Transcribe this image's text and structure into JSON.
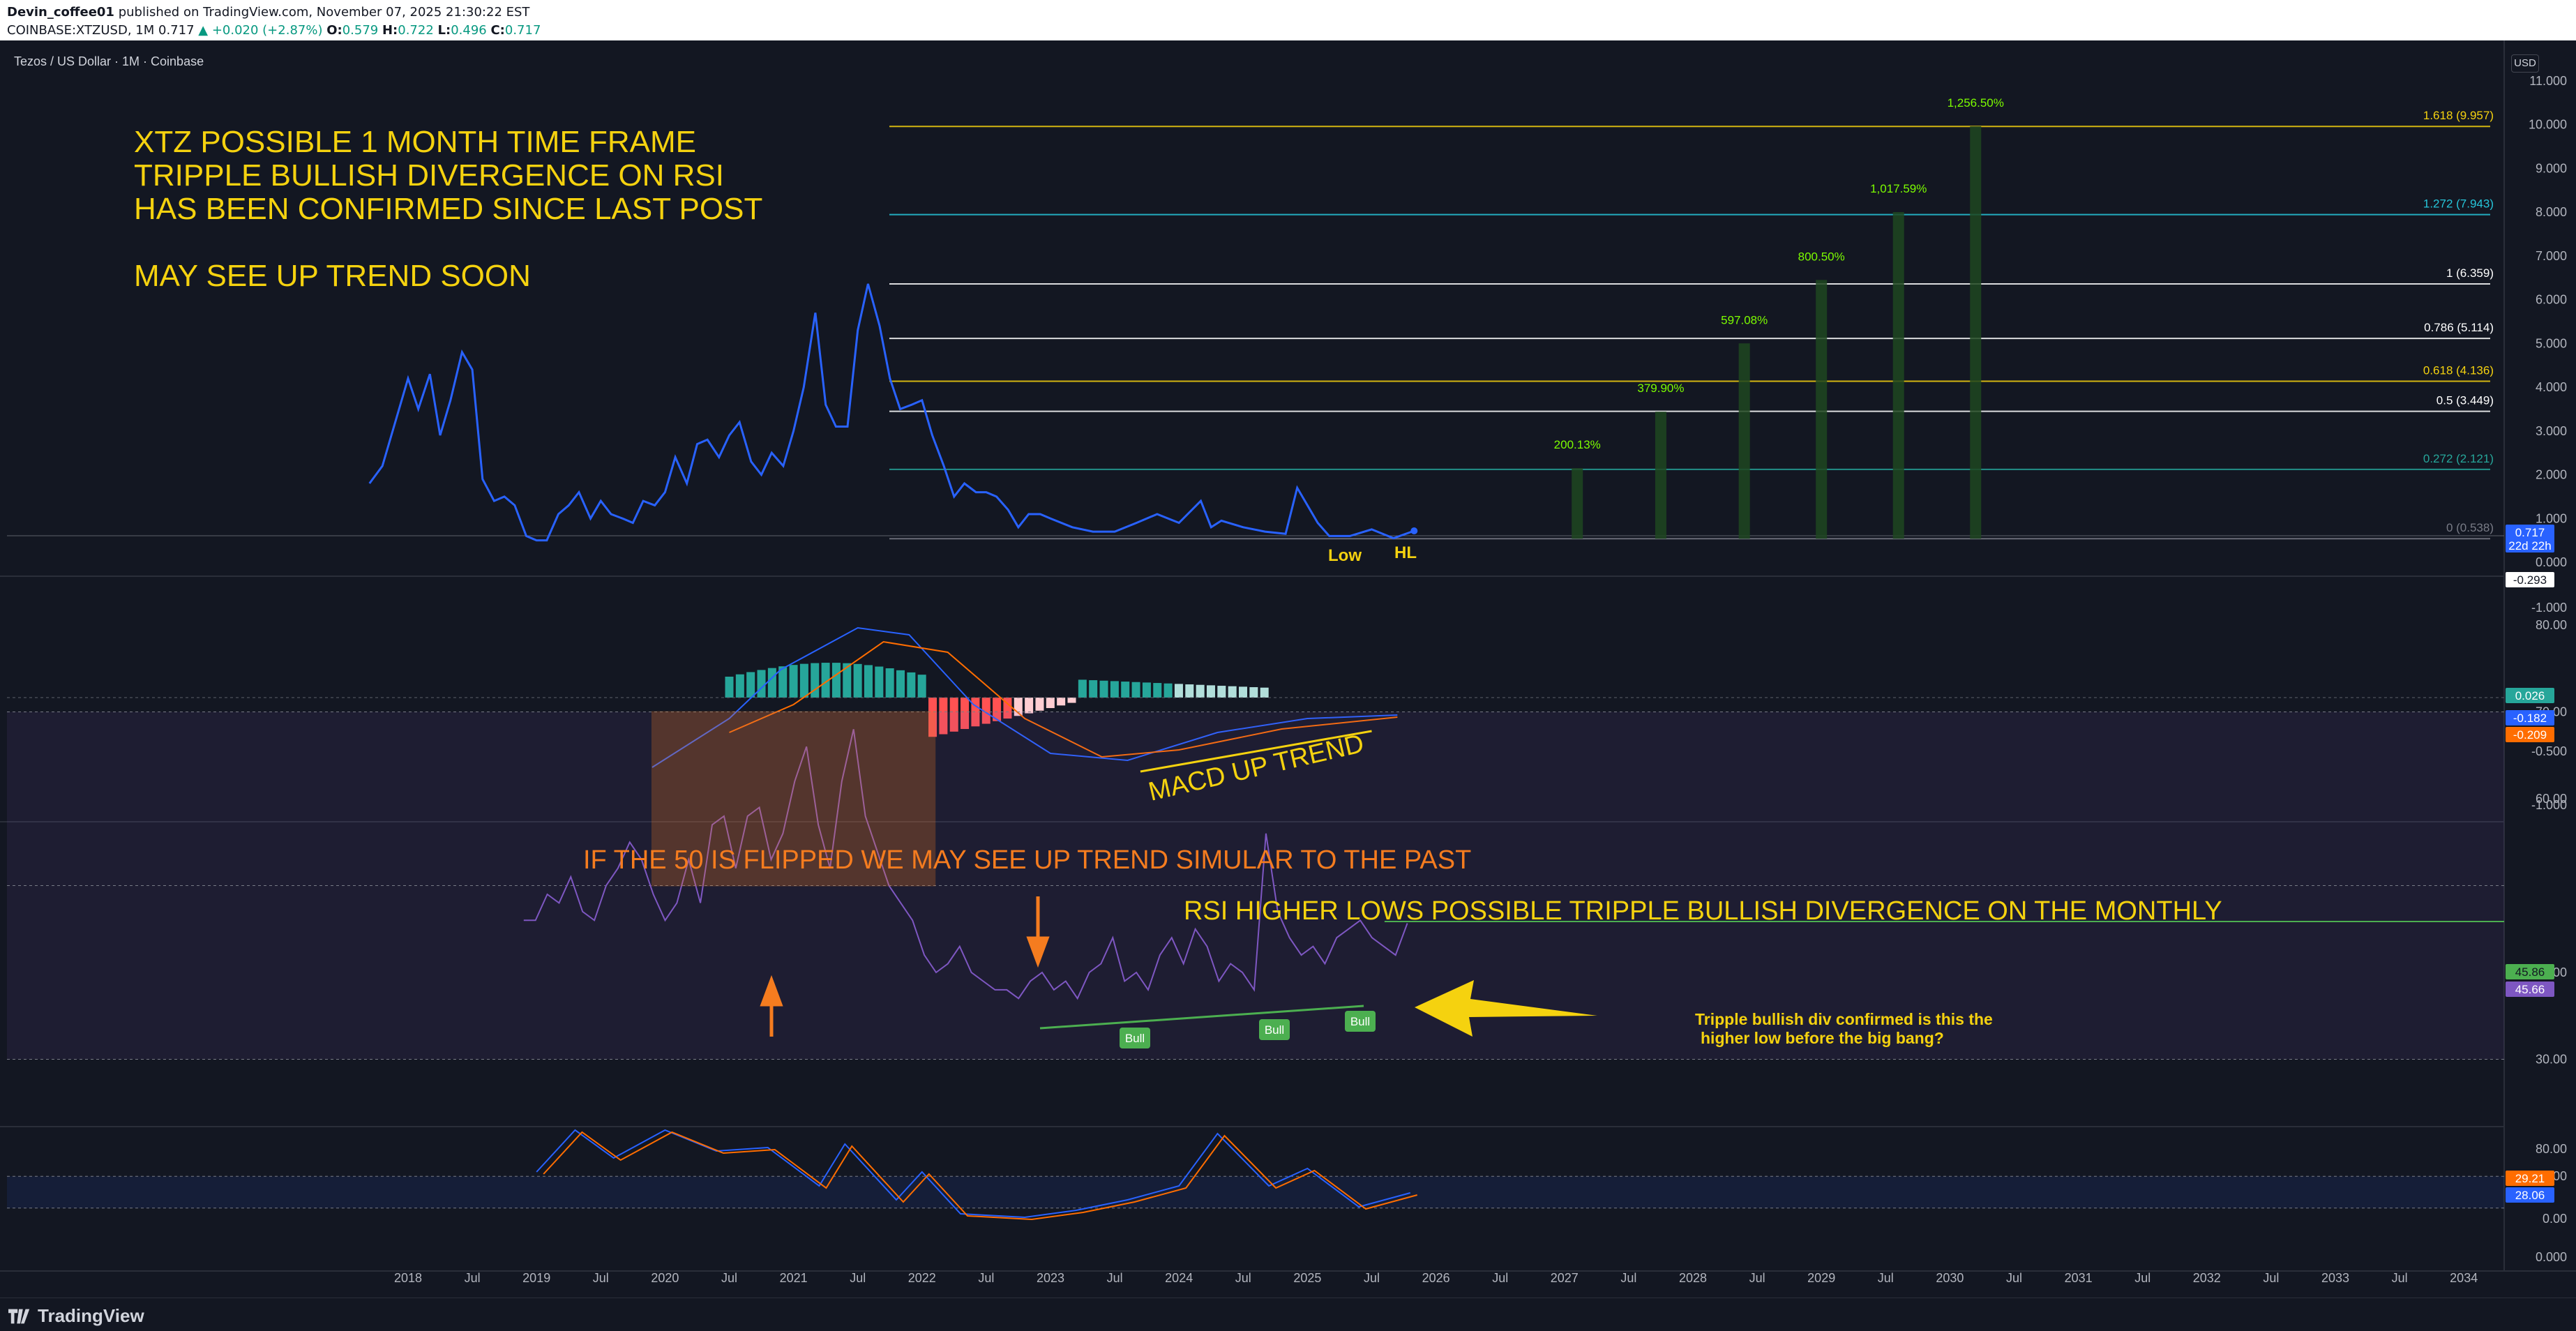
{
  "header": {
    "publisher": "Devin_coffee01",
    "published_text": "published on TradingView.com, November 07, 2025 21:30:22 EST",
    "symbol_line": {
      "symbol": "COINBASE:XTZUSD, 1M",
      "last": "0.717",
      "change": "▲ +0.020 (+2.87%)",
      "o_label": "O:",
      "o": "0.579",
      "h_label": "H:",
      "h": "0.722",
      "l_label": "L:",
      "l": "0.496",
      "c_label": "C:",
      "c": "0.717"
    }
  },
  "chart_title": "Tezos / US Dollar · 1M · Coinbase",
  "currency_button": "USD",
  "footer": {
    "brand": "TradingView"
  },
  "colors": {
    "background": "#131722",
    "price_line": "#2962ff",
    "annotation_yellow": "#f5d20f",
    "annotation_orange": "#f57c1f",
    "rsi_line": "#7e57c2",
    "green": "#4caf50"
  },
  "annotations": {
    "main_text": [
      "XTZ POSSIBLE 1 MONTH TIME FRAME",
      "TRIPPLE BULLISH DIVERGENCE ON RSI",
      "HAS BEEN CONFIRMED SINCE LAST POST",
      "",
      "MAY SEE UP TREND SOON"
    ],
    "low": "Low",
    "hl": "HL",
    "macd": "MACD UP TREND",
    "flip50": "IF THE 50 IS FLIPPED WE MAY SEE UP TREND SIMULAR TO THE PAST",
    "rsi_text": "RSI HIGHER LOWS POSSIBLE TRIPPLE BULLISH DIVERGENCE ON THE MONTHLY",
    "confirm_text": [
      "Tripple bullish div confirmed is this the",
      "higher low before the big bang?"
    ],
    "bull": "Bull"
  },
  "fib_levels": [
    {
      "label": "1.618 (9.957)",
      "value": 9.957,
      "color": "#f5d20f"
    },
    {
      "label": "1.272 (7.943)",
      "value": 7.943,
      "color": "#26c6da"
    },
    {
      "label": "1 (6.359)",
      "value": 6.359,
      "color": "#ffffff"
    },
    {
      "label": "0.786 (5.114)",
      "value": 5.114,
      "color": "#ffffff"
    },
    {
      "label": "0.618 (4.136)",
      "value": 4.136,
      "color": "#f5d20f"
    },
    {
      "label": "0.5 (3.449)",
      "value": 3.449,
      "color": "#ffffff"
    },
    {
      "label": "0.272 (2.121)",
      "value": 2.121,
      "color": "#26a69a"
    },
    {
      "label": "0 (0.538)",
      "value": 0.538,
      "color": "#787b86"
    }
  ],
  "targets": [
    {
      "label": "200.13%",
      "value": 2.15,
      "year": 2027.1
    },
    {
      "label": "379.90%",
      "value": 3.44,
      "year": 2027.75
    },
    {
      "label": "597.08%",
      "value": 5.0,
      "year": 2028.4
    },
    {
      "label": "800.50%",
      "value": 6.45,
      "year": 2029.0
    },
    {
      "label": "1,017.59%",
      "value": 8.0,
      "year": 2029.6
    },
    {
      "label": "1,256.50%",
      "value": 9.96,
      "year": 2030.2
    }
  ],
  "chart_data": {
    "type": "line",
    "price_series": {
      "x": [
        2017.7,
        2017.8,
        2018.0,
        2018.08,
        2018.17,
        2018.25,
        2018.33,
        2018.42,
        2018.5,
        2018.58,
        2018.67,
        2018.75,
        2018.83,
        2018.92,
        2019.0,
        2019.08,
        2019.17,
        2019.25,
        2019.33,
        2019.42,
        2019.5,
        2019.58,
        2019.67,
        2019.75,
        2019.83,
        2019.92,
        2020.0,
        2020.08,
        2020.17,
        2020.25,
        2020.33,
        2020.42,
        2020.5,
        2020.58,
        2020.67,
        2020.75,
        2020.83,
        2020.92,
        2021.0,
        2021.08,
        2021.17,
        2021.25,
        2021.33,
        2021.42,
        2021.5,
        2021.58,
        2021.67,
        2021.75,
        2021.83,
        2021.92,
        2022.0,
        2022.08,
        2022.17,
        2022.25,
        2022.33,
        2022.42,
        2022.5,
        2022.58,
        2022.67,
        2022.75,
        2022.83,
        2022.92,
        2023.0,
        2023.17,
        2023.33,
        2023.5,
        2023.67,
        2023.83,
        2024.0,
        2024.17,
        2024.25,
        2024.33,
        2024.5,
        2024.67,
        2024.83,
        2024.92,
        2025.0,
        2025.08,
        2025.17,
        2025.33,
        2025.5,
        2025.67,
        2025.83
      ],
      "values": [
        1.8,
        2.2,
        4.2,
        3.5,
        4.3,
        2.9,
        3.7,
        4.8,
        4.4,
        1.9,
        1.4,
        1.5,
        1.3,
        0.6,
        0.5,
        0.5,
        1.1,
        1.3,
        1.6,
        1.0,
        1.4,
        1.1,
        1.0,
        0.9,
        1.4,
        1.3,
        1.6,
        2.4,
        1.8,
        2.7,
        2.8,
        2.4,
        2.9,
        3.2,
        2.3,
        2.0,
        2.5,
        2.2,
        3.0,
        4.0,
        5.7,
        3.6,
        3.1,
        3.1,
        5.3,
        6.36,
        5.4,
        4.2,
        3.5,
        3.6,
        3.7,
        2.9,
        2.2,
        1.5,
        1.8,
        1.6,
        1.6,
        1.5,
        1.2,
        0.8,
        1.1,
        1.1,
        1.0,
        0.8,
        0.7,
        0.7,
        0.9,
        1.1,
        0.9,
        1.4,
        0.8,
        0.95,
        0.8,
        0.7,
        0.65,
        1.7,
        1.3,
        0.9,
        0.6,
        0.6,
        0.75,
        0.55,
        0.717
      ]
    },
    "y_ticks": [
      "11.000",
      "10.000",
      "9.000",
      "8.000",
      "7.000",
      "6.000",
      "5.000",
      "4.000",
      "3.000",
      "2.000",
      "1.000",
      "0.000",
      "-1.000"
    ],
    "macd_ticks": [
      "-0.500",
      "-1.000"
    ],
    "rsi_ticks": [
      "80.00",
      "70.00",
      "60.00",
      "40.00",
      "30.00"
    ],
    "stoch_ticks": [
      "80.00",
      "40.00",
      "0.00",
      "0.000"
    ],
    "x_ticks": [
      "2018",
      "Jul",
      "2019",
      "Jul",
      "2020",
      "Jul",
      "2021",
      "Jul",
      "2022",
      "Jul",
      "2023",
      "Jul",
      "2024",
      "Jul",
      "2025",
      "Jul",
      "2026",
      "Jul",
      "2027",
      "Jul",
      "2028",
      "Jul",
      "2029",
      "Jul",
      "2030",
      "Jul",
      "2031",
      "Jul",
      "2032",
      "Jul",
      "2033",
      "Jul",
      "2034"
    ],
    "badges": {
      "price": "0.717",
      "countdown": "22d 22h",
      "neg": "-0.293",
      "macd_hist": "0.026",
      "macd_line": "-0.182",
      "signal_line": "-0.209",
      "rsi_ma": "45.86",
      "rsi": "45.66",
      "stoch_k": "29.21",
      "stoch_d": "28.06"
    },
    "rsi_series": [
      46,
      46,
      49,
      48,
      51,
      47,
      46,
      50,
      52,
      55,
      53,
      49,
      46,
      48,
      53,
      48,
      57,
      58,
      52,
      58,
      59,
      53,
      56,
      62,
      66,
      57,
      52,
      62,
      68,
      58,
      54,
      50,
      48,
      46,
      42,
      40,
      41,
      43,
      40,
      39,
      38,
      38,
      37,
      39,
      40,
      38,
      39,
      37,
      40,
      41,
      44,
      39,
      40,
      38,
      42,
      44,
      41,
      45,
      43,
      39,
      41,
      40,
      38,
      56,
      47,
      44,
      42,
      43,
      41,
      44,
      45,
      46,
      44,
      43,
      42,
      45.66
    ]
  }
}
